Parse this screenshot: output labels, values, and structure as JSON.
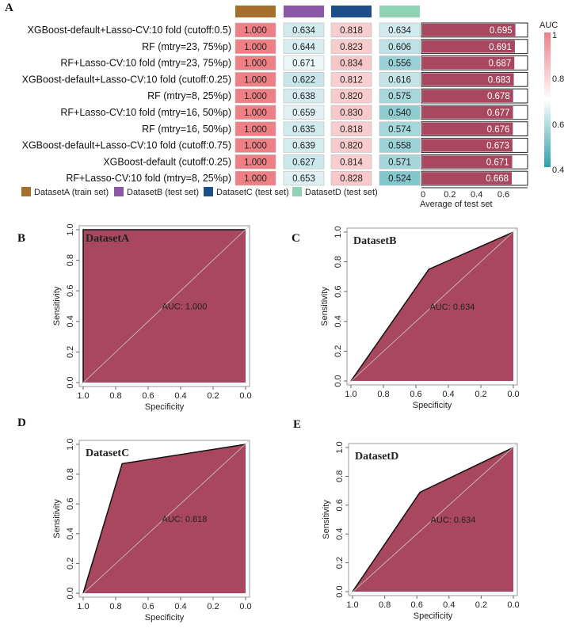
{
  "chart_data": [
    {
      "type": "heatmap",
      "panel": "A",
      "legend_title": "AUC",
      "colorbar_ticks": [
        "1",
        "0.8",
        "0.6",
        "0.4"
      ],
      "color_range": [
        0.4,
        1.0
      ],
      "colors": {
        "low": "#2ba0ab",
        "mid": "#ffffff",
        "high": "#ee7f85",
        "bar": "#a8475f"
      },
      "columns": [
        {
          "name": "DatasetA (train set)",
          "color": "#a66f2e"
        },
        {
          "name": "DatasetB (test set)",
          "color": "#8a58a6"
        },
        {
          "name": "DatasetC (test set)",
          "color": "#1d4e8a"
        },
        {
          "name": "DatasetD (test set)",
          "color": "#8fd3b4"
        }
      ],
      "rows": [
        {
          "label": "XGBoost-default+Lasso-CV:10 fold (cutoff:0.5)",
          "values": [
            "1.000",
            "0.634",
            "0.818",
            "0.634"
          ],
          "avg": "0.695"
        },
        {
          "label": "RF (mtry=23, 75%p)",
          "values": [
            "1.000",
            "0.644",
            "0.823",
            "0.606"
          ],
          "avg": "0.691"
        },
        {
          "label": "RF+Lasso-CV:10 fold (mtry=23, 75%p)",
          "values": [
            "1.000",
            "0.671",
            "0.834",
            "0.556"
          ],
          "avg": "0.687"
        },
        {
          "label": "XGBoost-default+Lasso-CV:10 fold (cutoff:0.25)",
          "values": [
            "1.000",
            "0.622",
            "0.812",
            "0.616"
          ],
          "avg": "0.683"
        },
        {
          "label": "RF (mtry=8, 25%p)",
          "values": [
            "1.000",
            "0.638",
            "0.820",
            "0.575"
          ],
          "avg": "0.678"
        },
        {
          "label": "RF+Lasso-CV:10 fold (mtry=16, 50%p)",
          "values": [
            "1.000",
            "0.659",
            "0.830",
            "0.540"
          ],
          "avg": "0.677"
        },
        {
          "label": "RF (mtry=16, 50%p)",
          "values": [
            "1.000",
            "0.635",
            "0.818",
            "0.574"
          ],
          "avg": "0.676"
        },
        {
          "label": "XGBoost-default+Lasso-CV:10 fold (cutoff:0.75)",
          "values": [
            "1.000",
            "0.639",
            "0.820",
            "0.558"
          ],
          "avg": "0.673"
        },
        {
          "label": "XGBoost-default (cutoff:0.25)",
          "values": [
            "1.000",
            "0.627",
            "0.814",
            "0.571"
          ],
          "avg": "0.671"
        },
        {
          "label": "RF+Lasso-CV:10 fold (mtry=8, 25%p)",
          "values": [
            "1.000",
            "0.653",
            "0.828",
            "0.524"
          ],
          "avg": "0.668"
        }
      ],
      "bar_axis": {
        "label": "Average of test set",
        "ticks": [
          "0",
          "0.2",
          "0.4",
          "0.6"
        ],
        "range": [
          0,
          0.78
        ]
      }
    },
    {
      "type": "area",
      "panel": "B",
      "title": "DatasetA",
      "auc_label": "AUC: 1.000",
      "roc": [
        [
          1,
          0
        ],
        [
          1,
          1
        ],
        [
          0,
          1
        ]
      ],
      "xlabel": "Specificity",
      "ylabel": "Sensitivity",
      "xticks": [
        "1.0",
        "0.8",
        "0.6",
        "0.4",
        "0.2",
        "0.0"
      ],
      "yticks": [
        "0.0",
        "0.2",
        "0.4",
        "0.6",
        "0.8",
        "1.0"
      ]
    },
    {
      "type": "area",
      "panel": "C",
      "title": "DatasetB",
      "auc_label": "AUC: 0.634",
      "roc": [
        [
          1,
          0
        ],
        [
          0.52,
          0.75
        ],
        [
          0,
          1
        ]
      ],
      "xlabel": "Specificity",
      "ylabel": "Sensitivity",
      "xticks": [
        "1.0",
        "0.8",
        "0.6",
        "0.4",
        "0.2",
        "0.0"
      ],
      "yticks": [
        "0.0",
        "0.2",
        "0.4",
        "0.6",
        "0.8",
        "1.0"
      ]
    },
    {
      "type": "area",
      "panel": "D",
      "title": "DatasetC",
      "auc_label": "AUC: 0.818",
      "roc": [
        [
          1,
          0
        ],
        [
          0.76,
          0.87
        ],
        [
          0,
          1
        ]
      ],
      "xlabel": "Specificity",
      "ylabel": "Sensitivity",
      "xticks": [
        "1.0",
        "0.8",
        "0.6",
        "0.4",
        "0.2",
        "0.0"
      ],
      "yticks": [
        "0.0",
        "0.2",
        "0.4",
        "0.6",
        "0.8",
        "1.0"
      ]
    },
    {
      "type": "area",
      "panel": "E",
      "title": "DatasetD",
      "auc_label": "AUC: 0.634",
      "roc": [
        [
          1,
          0
        ],
        [
          0.58,
          0.69
        ],
        [
          0,
          1
        ]
      ],
      "xlabel": "Specificity",
      "ylabel": "Sensitivity",
      "xticks": [
        "1.0",
        "0.8",
        "0.6",
        "0.4",
        "0.2",
        "0.0"
      ],
      "yticks": [
        "0.0",
        "0.2",
        "0.4",
        "0.6",
        "0.8",
        "1.0"
      ]
    }
  ]
}
